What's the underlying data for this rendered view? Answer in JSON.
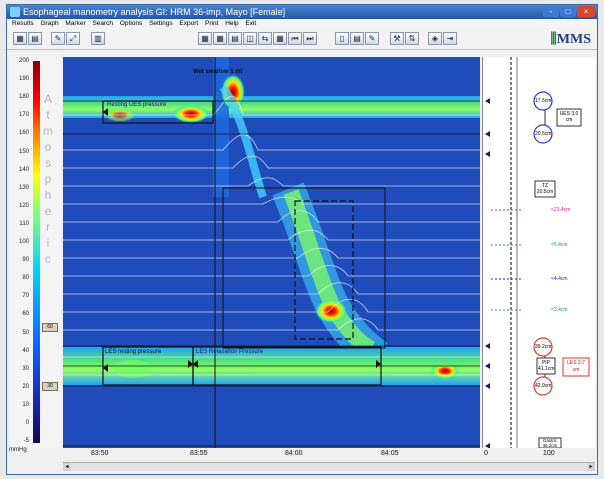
{
  "window": {
    "title": "Esophageal manometry analysis   GI: HRM 36-imp, Mayo [Female]",
    "controls": [
      "-",
      "□",
      "×"
    ]
  },
  "menu": [
    "Results",
    "Graph",
    "Marker",
    "Search",
    "Options",
    "Settings",
    "Export",
    "Print",
    "Help",
    "Exit"
  ],
  "logo": "MMS",
  "plot": {
    "wet_swallow": "Wet swallow 1 ml",
    "ues_label": "Resting UES pressure",
    "les_label": "LES resting pressure",
    "relax_label": "LES Relaxation Pressure"
  },
  "left_scale": {
    "ticks": [
      "200",
      "190",
      "180",
      "170",
      "160",
      "150",
      "140",
      "130",
      "120",
      "110",
      "100",
      "90",
      "80",
      "70",
      "60",
      "50",
      "40",
      "30",
      "20",
      "10",
      "0",
      "-5"
    ],
    "unit": "mmHg",
    "watermark": "Atmospheric",
    "markers": [
      "60",
      "30"
    ]
  },
  "time_axis": [
    "83:50",
    "83:55",
    "84:00",
    "84:05"
  ],
  "right_axis": [
    "0",
    "100"
  ],
  "right_panel": {
    "circles": {
      "ues_top": "17.5cm",
      "ues_bottom": "20.5cm",
      "les_top": "39.2cm",
      "les_bottom": "42.9cm"
    },
    "boxes": {
      "ues": "UES 3.0 cm",
      "tz": "TZ 20.5cm",
      "pip": "PIP 41.1cm",
      "les": "LES 3.7 cm",
      "gastric": "Gastric 46.2cm"
    },
    "markers": {
      "m1": "<23.4cm",
      "m2": "<5.4cm",
      "m3": "<4.4cm",
      "m4": "<3.4cm"
    }
  },
  "colors": {
    "titlebar": "#2f67b6",
    "plot_background": "#1a3fae",
    "ues_circle": "#1f3bd8",
    "les_circle": "#e0361c",
    "les_box": "#e0361c"
  }
}
